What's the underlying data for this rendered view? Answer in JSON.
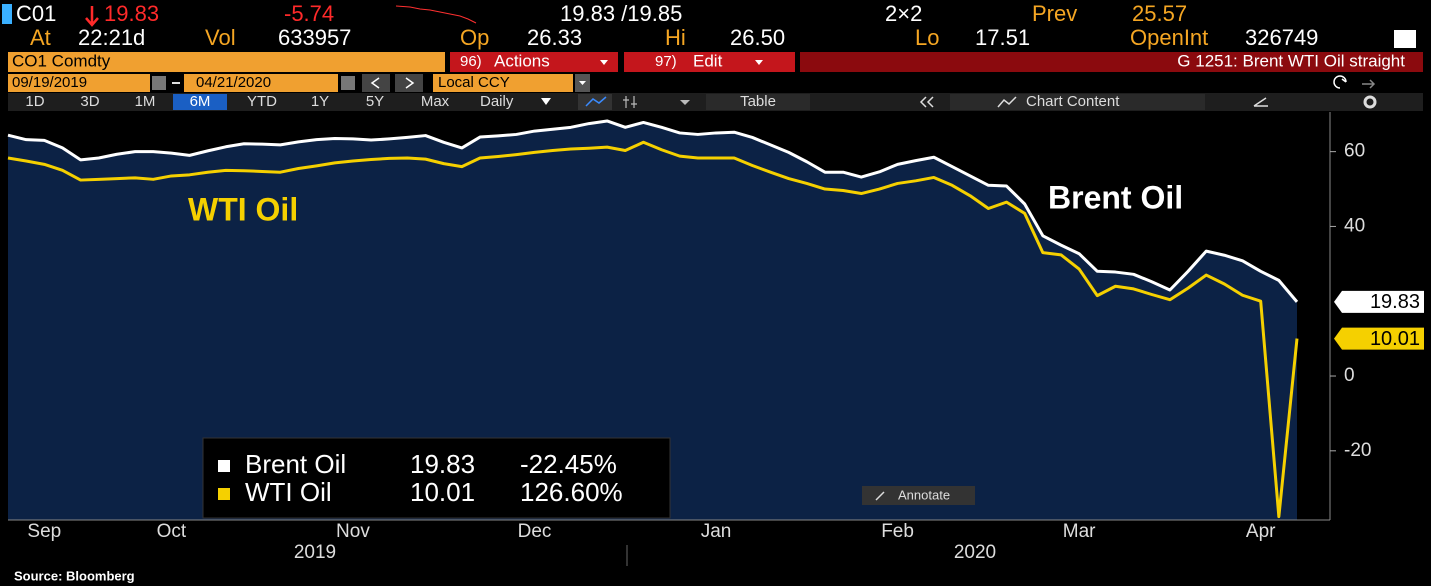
{
  "header": {
    "ticker": "C01",
    "last": "19.83",
    "change": "-5.74",
    "bid_ask": "19.83 /19.85",
    "size": "2×2",
    "prev_label": "Prev",
    "prev": "25.57",
    "at_label": "At",
    "time": "22:21d",
    "vol_label": "Vol",
    "vol": "633957",
    "op_label": "Op",
    "op": "26.33",
    "hi_label": "Hi",
    "hi": "26.50",
    "lo_label": "Lo",
    "lo": "17.51",
    "oi_label": "OpenInt",
    "oi": "326749"
  },
  "toolbar": {
    "security": "CO1 Comdty",
    "actions_code": "96)",
    "actions": "Actions",
    "edit_code": "97)",
    "edit": "Edit",
    "chart_title": "G 1251: Brent WTI Oil straight",
    "start_date": "09/19/2019",
    "end_date": "04/21/2020",
    "currency": "Local CCY",
    "periods": [
      "1D",
      "3D",
      "1M",
      "6M",
      "YTD",
      "1Y",
      "5Y",
      "Max"
    ],
    "active_period_index": 3,
    "frequency": "Daily",
    "table": "Table",
    "chart_content": "Chart Content",
    "annotate": "Annotate"
  },
  "chart_data": {
    "type": "line",
    "categories": [
      null,
      null,
      "Sep",
      null,
      null,
      null,
      null,
      null,
      null,
      "Oct",
      null,
      null,
      null,
      null,
      null,
      null,
      null,
      null,
      null,
      "Nov",
      null,
      null,
      null,
      null,
      null,
      null,
      null,
      null,
      null,
      "Dec",
      null,
      null,
      null,
      null,
      null,
      null,
      null,
      null,
      null,
      "Jan",
      null,
      null,
      null,
      null,
      null,
      null,
      null,
      null,
      null,
      "Feb",
      null,
      null,
      null,
      null,
      null,
      null,
      null,
      null,
      null,
      "Mar",
      null,
      null,
      null,
      null,
      null,
      null,
      null,
      null,
      null,
      "Apr",
      null,
      null
    ],
    "year_labels": [
      "2019",
      "2020"
    ],
    "series": [
      {
        "name": "Brent Oil",
        "color": "#ffffff",
        "change": "-22.45%",
        "values": [
          64.4,
          63.2,
          63.0,
          61.0,
          57.8,
          58.3,
          59.3,
          60.0,
          60.0,
          59.6,
          59.0,
          60.2,
          61.3,
          62.1,
          62.0,
          61.8,
          62.6,
          63.2,
          63.5,
          63.4,
          63.1,
          63.4,
          63.8,
          64.3,
          62.5,
          61.0,
          63.9,
          64.2,
          64.6,
          65.5,
          66.0,
          66.5,
          67.5,
          68.2,
          66.5,
          67.8,
          66.5,
          65.0,
          64.6,
          65.0,
          65.2,
          63.8,
          61.8,
          59.8,
          57.3,
          54.5,
          54.5,
          53.2,
          54.6,
          56.6,
          57.6,
          58.5,
          56.0,
          53.5,
          51.0,
          50.8,
          46.0,
          37.5,
          35.0,
          32.7,
          28.0,
          27.8,
          27.2,
          25.2,
          23.0,
          28.0,
          33.4,
          32.3,
          30.8,
          28.0,
          25.57,
          19.83
        ]
      },
      {
        "name": "WTI Oil",
        "color": "#f5d000",
        "change": "126.60%",
        "values": [
          58.3,
          57.5,
          56.6,
          55.0,
          52.4,
          52.6,
          52.8,
          53.0,
          52.6,
          53.5,
          53.8,
          54.5,
          55.0,
          54.9,
          54.7,
          54.5,
          55.5,
          56.2,
          57.0,
          57.5,
          57.9,
          58.2,
          58.3,
          58.0,
          56.8,
          56.0,
          58.3,
          58.7,
          59.2,
          59.8,
          60.3,
          60.7,
          60.9,
          61.2,
          60.3,
          62.5,
          60.5,
          58.8,
          58.3,
          58.3,
          58.3,
          56.3,
          54.5,
          52.8,
          51.5,
          50.0,
          49.6,
          48.8,
          50.0,
          51.5,
          52.2,
          53.1,
          51.0,
          48.2,
          44.8,
          46.5,
          43.5,
          33.0,
          32.4,
          28.6,
          21.5,
          24.0,
          23.3,
          21.8,
          20.4,
          23.5,
          27.0,
          24.6,
          21.6,
          20.0,
          -37.6,
          10.01
        ]
      }
    ],
    "annotations": [
      {
        "text": "WTI Oil",
        "color": "#f5d000"
      },
      {
        "text": "Brent Oil",
        "color": "#ffffff"
      }
    ],
    "ylim": [
      -38.5,
      70.6
    ],
    "yticks": [
      -20,
      0,
      40,
      60
    ],
    "area_color": "#0c2245",
    "source": "Source: Bloomberg"
  }
}
